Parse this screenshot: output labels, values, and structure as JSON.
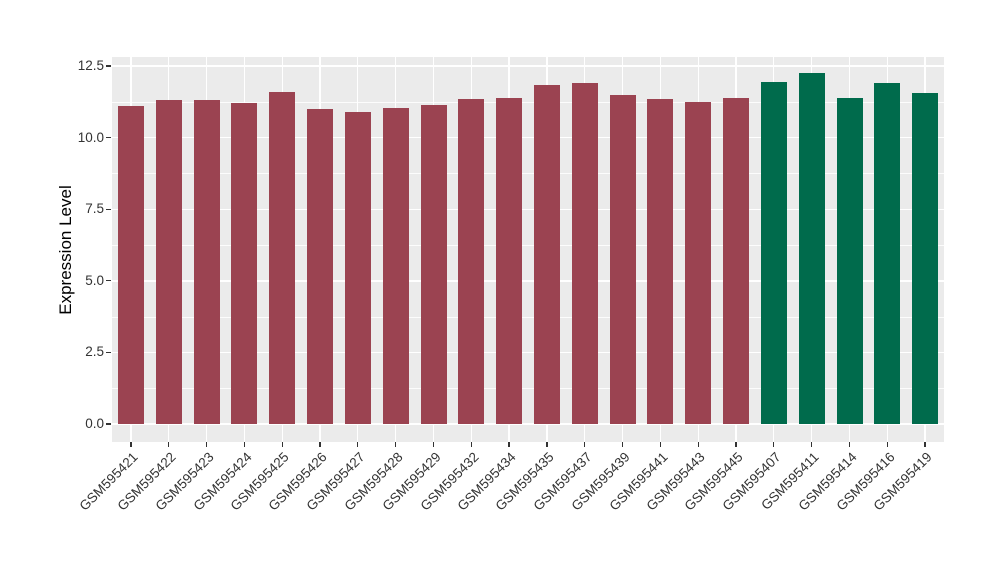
{
  "chart_data": {
    "type": "bar",
    "title": "",
    "xlabel": "",
    "ylabel": "Expression Level",
    "categories": [
      "GSM595421",
      "GSM595422",
      "GSM595423",
      "GSM595424",
      "GSM595425",
      "GSM595426",
      "GSM595427",
      "GSM595428",
      "GSM595429",
      "GSM595432",
      "GSM595434",
      "GSM595435",
      "GSM595437",
      "GSM595439",
      "GSM595441",
      "GSM595443",
      "GSM595445",
      "GSM595407",
      "GSM595411",
      "GSM595414",
      "GSM595416",
      "GSM595419"
    ],
    "values": [
      11.1,
      11.3,
      11.3,
      11.2,
      11.6,
      11.0,
      10.9,
      11.05,
      11.15,
      11.35,
      11.4,
      11.85,
      11.9,
      11.5,
      11.35,
      11.25,
      11.4,
      11.95,
      12.25,
      11.4,
      11.9,
      11.55
    ],
    "bar_groups": [
      "group1",
      "group1",
      "group1",
      "group1",
      "group1",
      "group1",
      "group1",
      "group1",
      "group1",
      "group1",
      "group1",
      "group1",
      "group1",
      "group1",
      "group1",
      "group1",
      "group1",
      "group2",
      "group2",
      "group2",
      "group2",
      "group2"
    ],
    "group_colors": {
      "group1": "#9B4351",
      "group2": "#006B4C"
    },
    "ylim": [
      0,
      12.5
    ],
    "yticks": [
      0,
      2.5,
      5,
      7.5,
      10,
      12.5
    ],
    "ytick_labels": [
      "0.0",
      "2.5",
      "5.0",
      "7.5",
      "10.0",
      "12.5"
    ],
    "y_minor_ticks": [
      1.25,
      3.75,
      6.25,
      8.75,
      11.25
    ],
    "grid": "on",
    "legend": "none",
    "panel_background": "#EBEBEB",
    "gridline_color": "#FFFFFF",
    "axis_text_color": "#333333",
    "tick_color": "#333333"
  }
}
